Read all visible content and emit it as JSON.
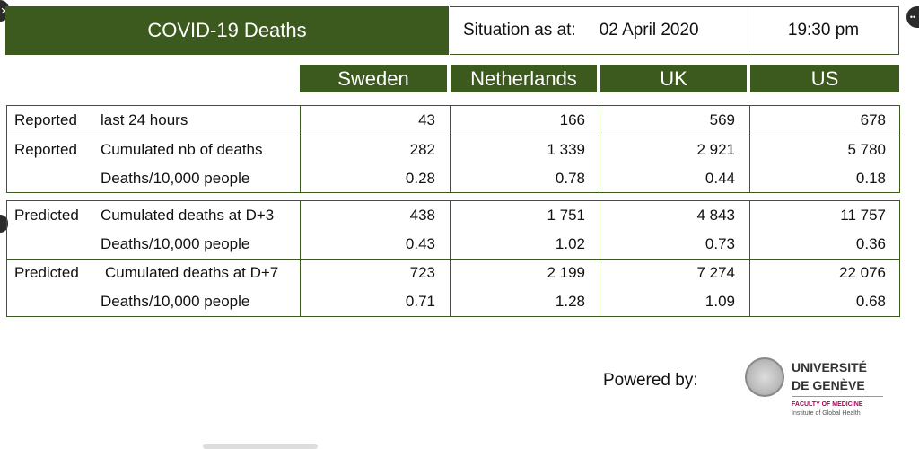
{
  "header": {
    "title": "COVID-19 Deaths",
    "situation_label": "Situation as at:",
    "date": "02 April 2020",
    "time": "19:30 pm"
  },
  "columns": [
    "Sweden",
    "Netherlands",
    "UK",
    "US"
  ],
  "rows": [
    {
      "label1": "Reported",
      "label2": "last 24 hours",
      "values": [
        "43",
        "166",
        "569",
        "678"
      ]
    },
    {
      "label1": "Reported",
      "label2": "Cumulated nb of deaths",
      "values": [
        "282",
        "1 339",
        "2 921",
        "5 780"
      ]
    },
    {
      "label1": "",
      "label2": "Deaths/10,000 people",
      "values": [
        "0.28",
        "0.78",
        "0.44",
        "0.18"
      ]
    },
    {
      "label1": "Predicted",
      "label2": "Cumulated deaths at D+3",
      "values": [
        "438",
        "1 751",
        "4 843",
        "11 757"
      ]
    },
    {
      "label1": "",
      "label2": "Deaths/10,000 people",
      "values": [
        "0.43",
        "1.02",
        "0.73",
        "0.36"
      ]
    },
    {
      "label1": "Predicted",
      "label2": "Cumulated deaths at D+7",
      "values": [
        "723",
        "2 199",
        "7 274",
        "22 076"
      ]
    },
    {
      "label1": "",
      "label2": "Deaths/10,000 people",
      "values": [
        "0.71",
        "1.28",
        "1.09",
        "0.68"
      ]
    }
  ],
  "footer": {
    "powered_by": "Powered by:",
    "logo_line1": "UNIVERSITÉ",
    "logo_line2": "DE GENÈVE",
    "logo_line3": "FACULTY OF MEDICINE",
    "logo_line4": "Institute of Global Health"
  },
  "colors": {
    "header_green": "#3d5a1e",
    "faculty_magenta": "#b0005a"
  }
}
